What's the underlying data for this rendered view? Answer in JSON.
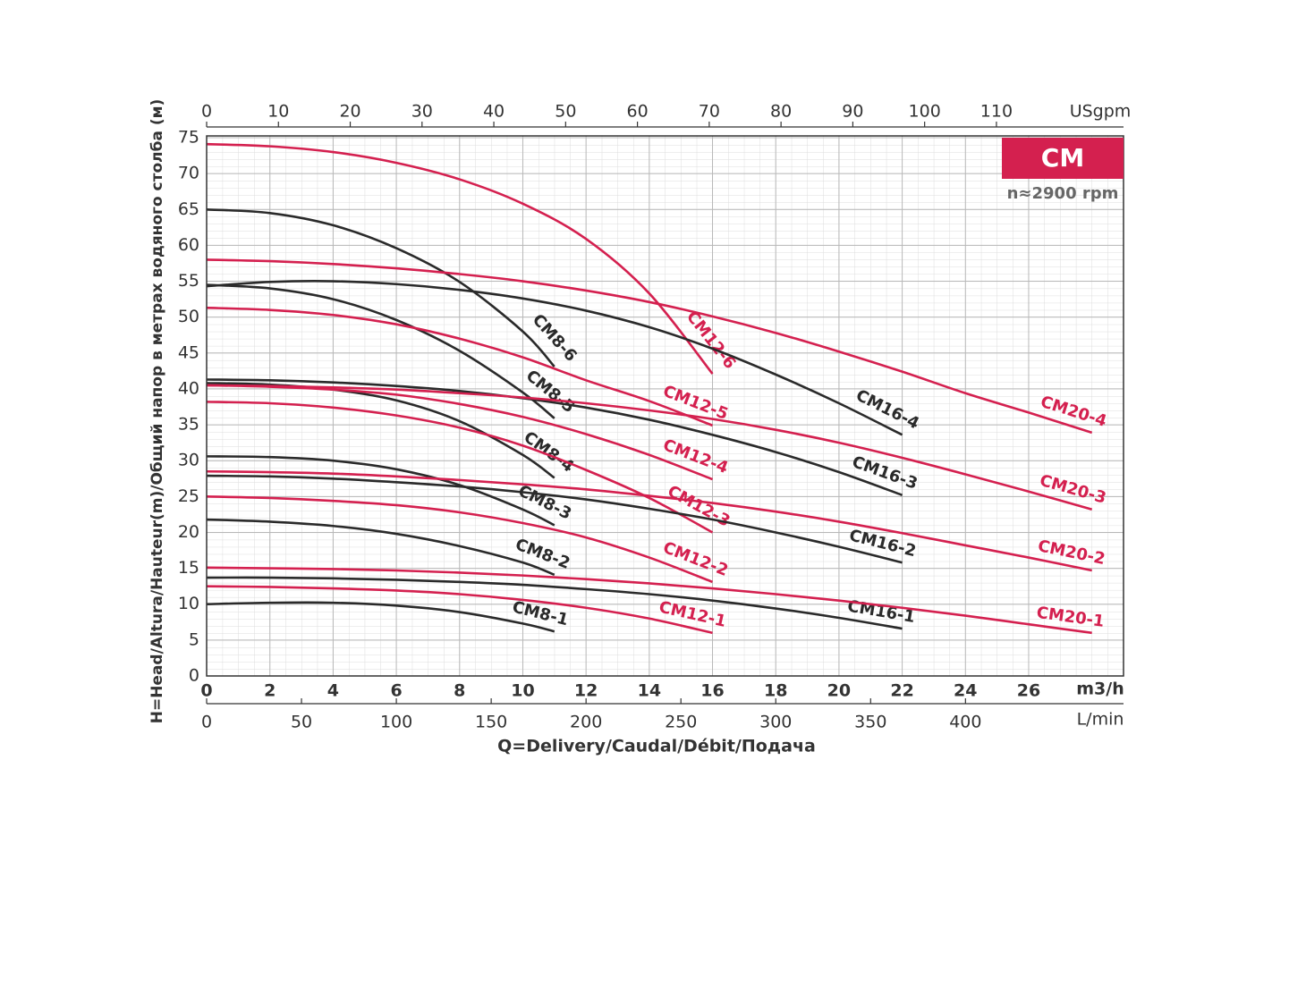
{
  "chart_data": {
    "type": "line",
    "title": "CM",
    "subtitle": "n≈2900 rpm",
    "x_label": "Q=Delivery/Caudal/Débit/Подача",
    "x_unit": "m3/h",
    "y_label": "H=Head/Altura/Hauteur(m)/Общий напор в метрах водяного столба (м)",
    "xlim": [
      0,
      29
    ],
    "xticks": [
      0,
      2,
      4,
      6,
      8,
      10,
      12,
      14,
      16,
      18,
      20,
      22,
      24,
      26
    ],
    "ylim": [
      0,
      75
    ],
    "yticks": [
      0,
      5,
      10,
      15,
      20,
      25,
      30,
      35,
      40,
      45,
      50,
      55,
      60,
      65,
      70,
      75
    ],
    "grid": true,
    "top_axis": {
      "label": "USgpm",
      "lim": [
        0,
        127.7
      ],
      "ticks": [
        0,
        10,
        20,
        30,
        40,
        50,
        60,
        70,
        80,
        90,
        100,
        110
      ]
    },
    "bottom_axis": {
      "label": "L/min",
      "lim": [
        0,
        483.3
      ],
      "ticks": [
        0,
        50,
        100,
        150,
        200,
        250,
        300,
        350,
        400
      ]
    },
    "series": [
      {
        "name": "CM8-1",
        "color": "#2a2a2a",
        "x": [
          0,
          2,
          4,
          6,
          8,
          10,
          11
        ],
        "values": [
          10,
          10.2,
          10.2,
          9.8,
          8.9,
          7.3,
          6.2
        ]
      },
      {
        "name": "CM8-2",
        "color": "#2a2a2a",
        "x": [
          0,
          2,
          4,
          6,
          8,
          10,
          11
        ],
        "values": [
          21.8,
          21.5,
          20.9,
          19.8,
          18.1,
          15.8,
          14.1
        ]
      },
      {
        "name": "CM8-3",
        "color": "#2a2a2a",
        "x": [
          0,
          2,
          4,
          6,
          8,
          10,
          11
        ],
        "values": [
          30.6,
          30.5,
          30,
          28.8,
          26.6,
          23.2,
          21
        ]
      },
      {
        "name": "CM8-4",
        "color": "#2a2a2a",
        "x": [
          0,
          2,
          4,
          6,
          8,
          10,
          11
        ],
        "values": [
          40.8,
          40.6,
          39.9,
          38.4,
          35.5,
          30.8,
          27.6
        ]
      },
      {
        "name": "CM8-5",
        "color": "#2a2a2a",
        "x": [
          0,
          2,
          4,
          6,
          8,
          10,
          11
        ],
        "values": [
          54.5,
          54,
          52.5,
          49.6,
          45.3,
          39.5,
          35.9
        ]
      },
      {
        "name": "CM8-6",
        "color": "#2a2a2a",
        "x": [
          0,
          2,
          4,
          6,
          8,
          10,
          11
        ],
        "values": [
          65,
          64.5,
          62.8,
          59.6,
          54.9,
          48,
          43.1
        ]
      },
      {
        "name": "CM12-1",
        "color": "#d4204f",
        "x": [
          0,
          2,
          4,
          6,
          8,
          10,
          12,
          14,
          16
        ],
        "values": [
          12.5,
          12.4,
          12.2,
          11.9,
          11.4,
          10.6,
          9.5,
          8,
          6
        ]
      },
      {
        "name": "CM12-2",
        "color": "#d4204f",
        "x": [
          0,
          2,
          4,
          6,
          8,
          10,
          12,
          14,
          16
        ],
        "values": [
          25,
          24.8,
          24.4,
          23.8,
          22.8,
          21.3,
          19.3,
          16.5,
          13.1
        ]
      },
      {
        "name": "CM12-3",
        "color": "#d4204f",
        "x": [
          0,
          2,
          4,
          6,
          8,
          10,
          12,
          14,
          16
        ],
        "values": [
          38.2,
          38,
          37.4,
          36.3,
          34.6,
          32.1,
          28.7,
          24.8,
          20
        ]
      },
      {
        "name": "CM12-4",
        "color": "#d4204f",
        "x": [
          0,
          2,
          4,
          6,
          8,
          10,
          12,
          14,
          16
        ],
        "values": [
          40.5,
          40.3,
          39.9,
          39.2,
          37.9,
          36.1,
          33.7,
          30.8,
          27.4
        ]
      },
      {
        "name": "CM12-5",
        "color": "#d4204f",
        "x": [
          0,
          2,
          4,
          6,
          8,
          10,
          12,
          14,
          16
        ],
        "values": [
          51.3,
          51,
          50.3,
          49,
          47,
          44.4,
          41.2,
          38.3,
          34.9
        ]
      },
      {
        "name": "CM12-6",
        "color": "#d4204f",
        "x": [
          0,
          2,
          4,
          6,
          8,
          10,
          12,
          14,
          16
        ],
        "values": [
          74.1,
          73.8,
          73,
          71.5,
          69.2,
          65.8,
          60.9,
          53.3,
          42.1
        ]
      },
      {
        "name": "CM16-1",
        "color": "#2a2a2a",
        "x": [
          0,
          2,
          4,
          6,
          8,
          10,
          12,
          14,
          16,
          18,
          20,
          22
        ],
        "values": [
          13.7,
          13.7,
          13.6,
          13.4,
          13.1,
          12.7,
          12.1,
          11.4,
          10.5,
          9.4,
          8.1,
          6.6
        ]
      },
      {
        "name": "CM16-2",
        "color": "#2a2a2a",
        "x": [
          0,
          2,
          4,
          6,
          8,
          10,
          12,
          14,
          16,
          18,
          20,
          22
        ],
        "values": [
          27.9,
          27.8,
          27.5,
          27,
          26.4,
          25.6,
          24.6,
          23.3,
          21.8,
          20,
          18,
          15.8
        ]
      },
      {
        "name": "CM16-3",
        "color": "#2a2a2a",
        "x": [
          0,
          2,
          4,
          6,
          8,
          10,
          12,
          14,
          16,
          18,
          20,
          22
        ],
        "values": [
          41.3,
          41.2,
          40.9,
          40.4,
          39.7,
          38.7,
          37.4,
          35.7,
          33.6,
          31.2,
          28.4,
          25.2
        ]
      },
      {
        "name": "CM16-4",
        "color": "#2a2a2a",
        "x": [
          0,
          2,
          4,
          6,
          8,
          10,
          12,
          14,
          16,
          18,
          20,
          22
        ],
        "values": [
          54.3,
          54.9,
          55,
          54.6,
          53.8,
          52.6,
          50.9,
          48.6,
          45.6,
          42,
          38,
          33.6
        ]
      },
      {
        "name": "CM20-1",
        "color": "#d4204f",
        "x": [
          0,
          2,
          4,
          6,
          8,
          10,
          12,
          14,
          16,
          18,
          20,
          22,
          24,
          26,
          28
        ],
        "values": [
          15.1,
          15,
          14.9,
          14.7,
          14.4,
          14,
          13.5,
          12.9,
          12.2,
          11.4,
          10.5,
          9.5,
          8.4,
          7.2,
          6
        ]
      },
      {
        "name": "CM20-2",
        "color": "#d4204f",
        "x": [
          0,
          2,
          4,
          6,
          8,
          10,
          12,
          14,
          16,
          18,
          20,
          22,
          24,
          26,
          28
        ],
        "values": [
          28.5,
          28.4,
          28.2,
          27.8,
          27.3,
          26.7,
          26,
          25.1,
          24.1,
          22.9,
          21.5,
          19.9,
          18.2,
          16.5,
          14.7
        ]
      },
      {
        "name": "CM20-3",
        "color": "#d4204f",
        "x": [
          0,
          2,
          4,
          6,
          8,
          10,
          12,
          14,
          16,
          18,
          20,
          22,
          24,
          26,
          28
        ],
        "values": [
          40.5,
          40.4,
          40.2,
          39.9,
          39.4,
          38.8,
          38,
          37,
          35.8,
          34.3,
          32.5,
          30.4,
          28.1,
          25.7,
          23.2
        ]
      },
      {
        "name": "CM20-4",
        "color": "#d4204f",
        "x": [
          0,
          2,
          4,
          6,
          8,
          10,
          12,
          14,
          16,
          18,
          20,
          22,
          24,
          26,
          28
        ],
        "values": [
          58,
          57.8,
          57.4,
          56.8,
          56,
          55,
          53.7,
          52.1,
          50.1,
          47.8,
          45.2,
          42.4,
          39.4,
          36.7,
          33.9
        ]
      }
    ]
  }
}
